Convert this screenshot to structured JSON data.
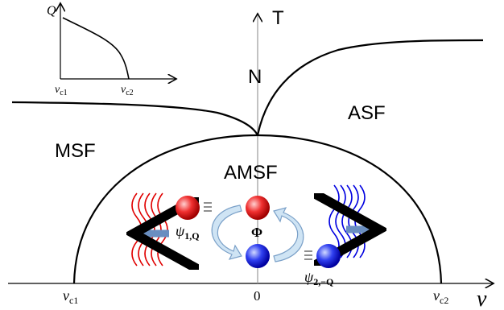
{
  "axes": {
    "vertical": "T",
    "horizontal": "ν",
    "origin": "0",
    "vc1": {
      "symbol": "v",
      "subscript": "c1"
    },
    "vc2": {
      "symbol": "v",
      "subscript": "c2"
    }
  },
  "regions": {
    "N": "N",
    "MSF": "MSF",
    "ASF": "ASF",
    "AMSF": "AMSF"
  },
  "inset": {
    "y_label": "Q",
    "vc1": {
      "symbol": "v",
      "subscript": "c1"
    },
    "vc2": {
      "symbol": "v",
      "subscript": "c2"
    }
  },
  "labels": {
    "psi1": {
      "symbol": "ψ",
      "subscript": "1,Q"
    },
    "psi2": {
      "symbol": "ψ",
      "subscript": "2,−Q"
    },
    "phi": "Φ"
  }
}
